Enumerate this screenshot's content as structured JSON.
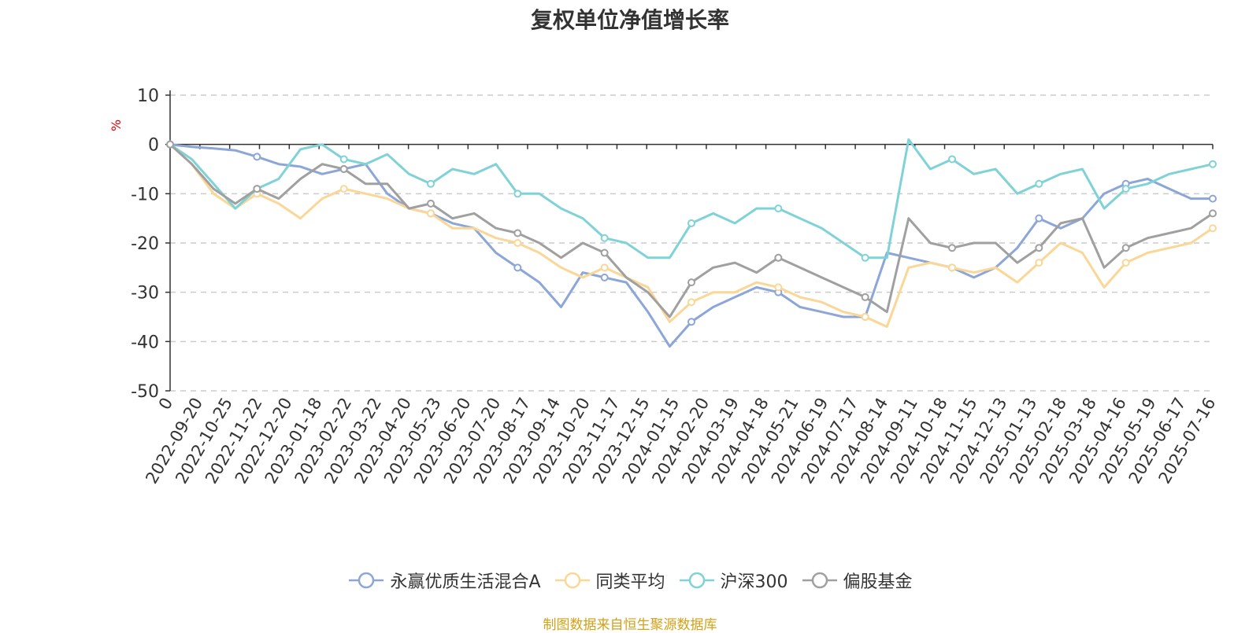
{
  "chart_data": {
    "type": "line",
    "title": "复权单位净值增长率",
    "ylabel": "%",
    "ylim": [
      -50,
      10
    ],
    "yticks": [
      10,
      0,
      -10,
      -20,
      -30,
      -40,
      -50
    ],
    "xticks": [
      "0",
      "2022-09-20",
      "2022-10-25",
      "2022-11-22",
      "2022-12-20",
      "2023-01-18",
      "2023-02-22",
      "2023-03-22",
      "2023-04-20",
      "2023-05-23",
      "2023-06-20",
      "2023-07-20",
      "2023-08-17",
      "2023-09-14",
      "2023-10-20",
      "2023-11-17",
      "2023-12-15",
      "2024-01-15",
      "2024-02-20",
      "2024-03-19",
      "2024-04-18",
      "2024-05-21",
      "2024-06-19",
      "2024-07-17",
      "2024-08-14",
      "2024-09-11",
      "2024-10-18",
      "2024-11-15",
      "2024-12-13",
      "2025-01-13",
      "2025-02-18",
      "2025-03-18",
      "2025-04-16",
      "2025-05-19",
      "2025-06-17",
      "2025-07-16"
    ],
    "grid": true,
    "legend_position": "bottom",
    "series": [
      {
        "name": "永赢优质生活混合A",
        "color": "#8ca6d8",
        "values": [
          0,
          -0.5,
          -0.8,
          -1.2,
          -2.5,
          -4,
          -4.5,
          -6,
          -5,
          -4,
          -10,
          -13,
          -14,
          -16,
          -17,
          -22,
          -25,
          -28,
          -33,
          -26,
          -27,
          -28,
          -34,
          -41,
          -36,
          -33,
          -31,
          -29,
          -30,
          -33,
          -34,
          -35,
          -35,
          -22,
          -23,
          -24,
          -25,
          -27,
          -25,
          -21,
          -15,
          -17,
          -15,
          -10,
          -8,
          -7,
          -9,
          -11,
          -11
        ]
      },
      {
        "name": "同类平均",
        "color": "#fad797",
        "values": [
          0,
          -4,
          -10,
          -13,
          -10,
          -12,
          -15,
          -11,
          -9,
          -10,
          -11,
          -13,
          -14,
          -17,
          -17,
          -19,
          -20,
          -22,
          -25,
          -27,
          -25,
          -27,
          -29,
          -36,
          -32,
          -30,
          -30,
          -28,
          -29,
          -31,
          -32,
          -34,
          -35,
          -37,
          -25,
          -24,
          -25,
          -26,
          -25,
          -28,
          -24,
          -20,
          -22,
          -29,
          -24,
          -22,
          -21,
          -20,
          -17
        ]
      },
      {
        "name": "沪深300",
        "color": "#7fd3d6",
        "values": [
          0,
          -3,
          -8,
          -13,
          -9,
          -7,
          -1,
          0,
          -3,
          -4,
          -2,
          -6,
          -8,
          -5,
          -6,
          -4,
          -10,
          -10,
          -13,
          -15,
          -19,
          -20,
          -23,
          -23,
          -16,
          -14,
          -16,
          -13,
          -13,
          -15,
          -17,
          -20,
          -23,
          -23,
          1,
          -5,
          -3,
          -6,
          -5,
          -10,
          -8,
          -6,
          -5,
          -13,
          -9,
          -8,
          -6,
          -5,
          -4
        ]
      },
      {
        "name": "偏股基金",
        "color": "#a0a0a0",
        "values": [
          0,
          -4,
          -9,
          -12,
          -9,
          -11,
          -7,
          -4,
          -5,
          -8,
          -8,
          -13,
          -12,
          -15,
          -14,
          -17,
          -18,
          -20,
          -23,
          -20,
          -22,
          -27,
          -30,
          -35,
          -28,
          -25,
          -24,
          -26,
          -23,
          -25,
          -27,
          -29,
          -31,
          -34,
          -15,
          -20,
          -21,
          -20,
          -20,
          -24,
          -21,
          -16,
          -15,
          -25,
          -21,
          -19,
          -18,
          -17,
          -14
        ]
      }
    ]
  },
  "source_text": "制图数据来自恒生聚源数据库"
}
